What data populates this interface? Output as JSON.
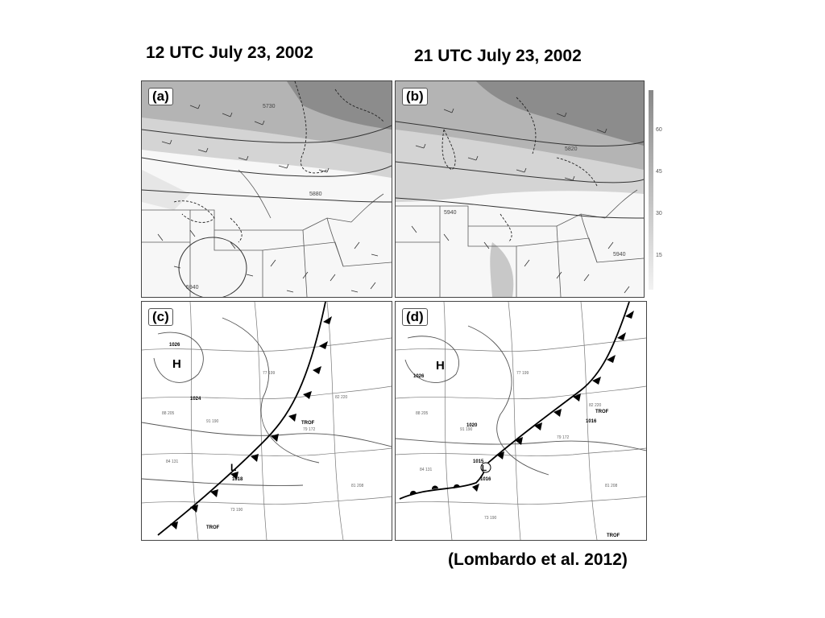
{
  "titles": {
    "left": "12 UTC July 23, 2002",
    "right": "21 UTC July 23, 2002"
  },
  "citation": "(Lombardo et al. 2012)",
  "panels": {
    "a": {
      "label": "(a)",
      "contours": [
        "5730",
        "5880",
        "5940"
      ]
    },
    "b": {
      "label": "(b)",
      "contours": [
        "5820",
        "5940",
        "5940"
      ]
    },
    "c": {
      "label": "(c)",
      "highs": [
        "H"
      ],
      "lows": [
        "L"
      ],
      "pressures": [
        "1026",
        "1024",
        "1018"
      ],
      "trof": [
        "TROF",
        "TROF"
      ]
    },
    "d": {
      "label": "(d)",
      "highs": [
        "H"
      ],
      "lows": [
        "L"
      ],
      "pressures": [
        "1026",
        "1020",
        "1016",
        "1016",
        "1015"
      ],
      "trof": [
        "TROF",
        "TROF"
      ]
    }
  },
  "colorbar": {
    "ticks": [
      "60",
      "45",
      "30",
      "15"
    ]
  },
  "colors": {
    "shade_dark": "#8c8c8c",
    "shade_mid": "#b4b4b4",
    "shade_light": "#d4d4d4",
    "front": "#000000",
    "map_line": "#5a5a5a"
  }
}
